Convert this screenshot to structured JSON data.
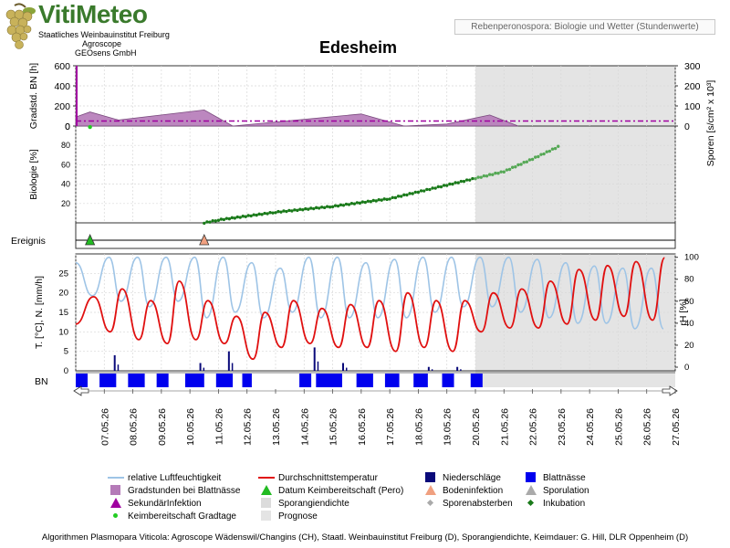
{
  "logo": {
    "title": "VitiMeteo",
    "line1": "Staatliches Weinbauinstitut Freiburg",
    "line2": "Agroscope",
    "line3": "GEOsens GmbH"
  },
  "header_box": "Rebenperonospora: Biologie und Wetter (Stundenwerte)",
  "title": "Edesheim",
  "axes": {
    "grad_label": "Gradstd. BN [h]",
    "grad_ticks": [
      "0",
      "200",
      "400",
      "600"
    ],
    "spore_label": "Sporen [s/cm² x 10³]",
    "spore_ticks": [
      "0",
      "100",
      "200",
      "300"
    ],
    "bio_label": "Biologie [%]",
    "bio_ticks": [
      "20",
      "40",
      "60",
      "80"
    ],
    "bio_top_tick": "0",
    "event_label": "Ereignis",
    "temp_label": "T. [°C], N. [mm/h]",
    "temp_ticks": [
      "0",
      "5",
      "10",
      "15",
      "20",
      "25"
    ],
    "rh_label": "rH [%]",
    "rh_ticks": [
      "0",
      "20",
      "40",
      "60",
      "80",
      "100"
    ],
    "bn_label": "BN"
  },
  "dates": [
    "07.05.26",
    "08.05.26",
    "09.05.26",
    "10.05.26",
    "11.05.26",
    "12.05.26",
    "13.05.26",
    "14.05.26",
    "15.05.26",
    "16.05.26",
    "17.05.26",
    "18.05.26",
    "19.05.26",
    "20.05.26",
    "21.05.26",
    "22.05.26",
    "23.05.26",
    "24.05.26",
    "25.05.26",
    "26.05.26",
    "27.05.26"
  ],
  "legend": [
    {
      "symbol": "line-lightblue",
      "label": "relative Luftfeuchtigkeit"
    },
    {
      "symbol": "line-red",
      "label": "Durchschnittstemperatur"
    },
    {
      "symbol": "square-navy",
      "label": "Niederschläge"
    },
    {
      "symbol": "square-blue",
      "label": "Blattnässe"
    },
    {
      "symbol": "square-purple",
      "label": "Gradstunden bei Blattnässe"
    },
    {
      "symbol": "triangle-green",
      "label": "Datum Keimbereitschaft (Pero)"
    },
    {
      "symbol": "triangle-orange",
      "label": "Bodeninfektion"
    },
    {
      "symbol": "triangle-gray",
      "label": "Sporulation"
    },
    {
      "symbol": "triangle-magenta",
      "label": "SekundärInfektion"
    },
    {
      "symbol": "square-lightgray",
      "label": "Sporangiendichte"
    },
    {
      "symbol": "diamond-gray",
      "label": "Sporenabsterben"
    },
    {
      "symbol": "diamond-green",
      "label": "Inkubation"
    },
    {
      "symbol": "dot-green",
      "label": "Keimbereitschaft Gradtage"
    },
    {
      "symbol": "square-lightgray2",
      "label": "Prognose"
    }
  ],
  "footer": "Algorithmen Plasmopara Viticola: Agroscope Wädenswil/Changins (CH), Staatl. Weinbauinstitut Freiburg (D), Sporangiendichte, Keimdauer: G. Hill, DLR Oppenheim (D)",
  "colors": {
    "rh": "#9ec4e6",
    "temp": "#e01010",
    "rain": "#0a0a7a",
    "bn": "#0000ee",
    "grad": "#b57ab8",
    "bio_obs": "#1a7a1a",
    "bio_prog": "#55a855",
    "forecast": "#e4e4e4",
    "magenta": "#a000a0"
  },
  "chart_data": {
    "type": "multi-panel time series",
    "x_range": [
      "06.05.26",
      "27.05.26"
    ],
    "forecast_start": "20.05.26",
    "panels": [
      {
        "name": "gradstunden",
        "y_range": [
          0,
          600
        ],
        "series_grad_peaks": [
          {
            "date": "06.05.26 12h",
            "value": 140
          },
          {
            "date": "07.05.26 12h",
            "value": 60
          },
          {
            "date": "10.05.26 12h",
            "value": 160
          },
          {
            "date": "11.05.26 12h",
            "value": 0
          },
          {
            "date": "16.05.26 00h",
            "value": 120
          },
          {
            "date": "17.05.26 12h",
            "value": 0
          },
          {
            "date": "19.05.26 00h",
            "value": 20
          },
          {
            "date": "20.05.26 12h",
            "value": 110
          }
        ],
        "secondary_infection_line": 50
      },
      {
        "name": "biologie",
        "y_range": [
          0,
          100
        ],
        "series": [
          {
            "date": "10.05.26 12h",
            "value": 0
          },
          {
            "date": "11.05.26",
            "value": 3
          },
          {
            "date": "13.05.26",
            "value": 11
          },
          {
            "date": "15.05.26",
            "value": 17
          },
          {
            "date": "17.05.26",
            "value": 25
          },
          {
            "date": "18.05.26",
            "value": 32
          },
          {
            "date": "19.05.26",
            "value": 39
          },
          {
            "date": "20.05.26",
            "value": 46
          },
          {
            "date": "21.05.26",
            "value": 53
          },
          {
            "date": "22.05.26",
            "value": 66
          },
          {
            "date": "23.05.26",
            "value": 80
          }
        ]
      },
      {
        "name": "ereignis",
        "events": [
          {
            "date": "06.05.26 12h",
            "type": "Datum Keimbereitschaft (Pero)"
          },
          {
            "date": "10.05.26 12h",
            "type": "Bodeninfektion"
          }
        ]
      },
      {
        "name": "wetter",
        "temp_range": [
          0,
          30
        ],
        "rh_range": [
          0,
          100
        ],
        "temperature_daily_extremes": [
          {
            "date": "07.05.26",
            "min": 10,
            "max": 19
          },
          {
            "date": "08.05.26",
            "min": 8,
            "max": 21
          },
          {
            "date": "09.05.26",
            "min": 7,
            "max": 18
          },
          {
            "date": "10.05.26",
            "min": 8,
            "max": 23
          },
          {
            "date": "11.05.26",
            "min": 7,
            "max": 18
          },
          {
            "date": "12.05.26",
            "min": 3,
            "max": 14
          },
          {
            "date": "13.05.26",
            "min": 6,
            "max": 15
          },
          {
            "date": "14.05.26",
            "min": 7,
            "max": 18
          },
          {
            "date": "15.05.26",
            "min": 6,
            "max": 16
          },
          {
            "date": "16.05.26",
            "min": 6,
            "max": 17
          },
          {
            "date": "17.05.26",
            "min": 5,
            "max": 18
          },
          {
            "date": "18.05.26",
            "min": 6,
            "max": 20
          },
          {
            "date": "19.05.26",
            "min": 5,
            "max": 18
          },
          {
            "date": "20.05.26",
            "min": 10,
            "max": 18
          },
          {
            "date": "21.05.26",
            "min": 11,
            "max": 20
          },
          {
            "date": "22.05.26",
            "min": 11,
            "max": 21
          },
          {
            "date": "23.05.26",
            "min": 12,
            "max": 23
          },
          {
            "date": "24.05.26",
            "min": 13,
            "max": 26
          },
          {
            "date": "25.05.26",
            "min": 14,
            "max": 27
          },
          {
            "date": "26.05.26",
            "min": 13,
            "max": 28
          },
          {
            "date": "27.05.26",
            "min": 14,
            "max": 29
          }
        ],
        "rh_daily_extremes": [
          {
            "date": "07.05.26",
            "min": 65,
            "max": 100
          },
          {
            "date": "08.05.26",
            "min": 60,
            "max": 100
          },
          {
            "date": "09.05.26",
            "min": 55,
            "max": 100
          },
          {
            "date": "10.05.26",
            "min": 60,
            "max": 100
          },
          {
            "date": "11.05.26",
            "min": 45,
            "max": 100
          },
          {
            "date": "12.05.26",
            "min": 50,
            "max": 95
          },
          {
            "date": "13.05.26",
            "min": 45,
            "max": 90
          },
          {
            "date": "14.05.26",
            "min": 50,
            "max": 100
          },
          {
            "date": "15.05.26",
            "min": 45,
            "max": 100
          },
          {
            "date": "16.05.26",
            "min": 45,
            "max": 95
          },
          {
            "date": "17.05.26",
            "min": 45,
            "max": 98
          },
          {
            "date": "18.05.26",
            "min": 45,
            "max": 100
          },
          {
            "date": "19.05.26",
            "min": 50,
            "max": 100
          },
          {
            "date": "20.05.26",
            "min": 55,
            "max": 100
          },
          {
            "date": "21.05.26",
            "min": 55,
            "max": 100
          },
          {
            "date": "22.05.26",
            "min": 50,
            "max": 98
          },
          {
            "date": "23.05.26",
            "min": 45,
            "max": 95
          },
          {
            "date": "24.05.26",
            "min": 40,
            "max": 92
          },
          {
            "date": "25.05.26",
            "min": 40,
            "max": 90
          },
          {
            "date": "26.05.26",
            "min": 35,
            "max": 90
          },
          {
            "date": "27.05.26",
            "min": 35,
            "max": 90
          }
        ],
        "rain_mm_per_h": [
          {
            "date": "07.05.26",
            "value": 4
          },
          {
            "date": "10.05.26",
            "value": 2
          },
          {
            "date": "11.05.26",
            "value": 5
          },
          {
            "date": "14.05.26",
            "value": 6
          },
          {
            "date": "15.05.26",
            "value": 2
          },
          {
            "date": "18.05.26",
            "value": 1
          },
          {
            "date": "19.05.26",
            "value": 1
          }
        ]
      },
      {
        "name": "blattnaesse",
        "wet_intervals": [
          [
            "06.05.26 00h",
            "06.05.26 10h"
          ],
          [
            "06.05.26 20h",
            "07.05.26 10h"
          ],
          [
            "07.05.26 20h",
            "08.05.26 10h"
          ],
          [
            "08.05.26 20h",
            "09.05.26 06h"
          ],
          [
            "09.05.26 20h",
            "10.05.26 12h"
          ],
          [
            "10.05.26 22h",
            "11.05.26 12h"
          ],
          [
            "11.05.26 20h",
            "12.05.26 04h"
          ],
          [
            "13.05.26 20h",
            "14.05.26 06h"
          ],
          [
            "14.05.26 10h",
            "15.05.26 08h"
          ],
          [
            "15.05.26 20h",
            "16.05.26 10h"
          ],
          [
            "16.05.26 20h",
            "17.05.26 08h"
          ],
          [
            "17.05.26 20h",
            "18.05.26 08h"
          ],
          [
            "18.05.26 20h",
            "19.05.26 06h"
          ],
          [
            "19.05.26 20h",
            "20.05.26 06h"
          ]
        ]
      }
    ]
  }
}
